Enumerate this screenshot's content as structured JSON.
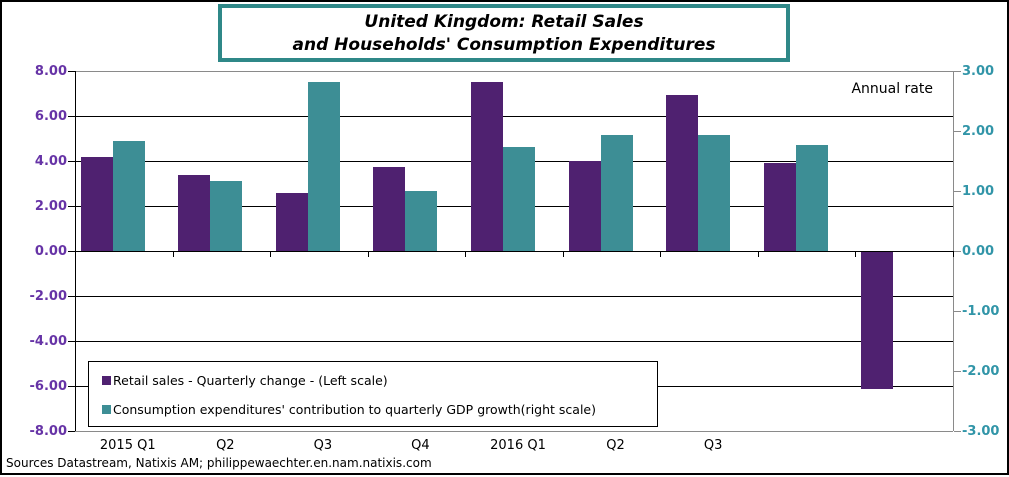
{
  "title": {
    "line1": "United Kingdom: Retail Sales",
    "line2": "and Households' Consumption Expenditures"
  },
  "annotation": "Annual rate",
  "source": "Sources Datastream, Natixis AM; philippewaechter.en.nam.natixis.com",
  "legend": {
    "items": [
      {
        "label": "Retail sales - Quarterly change - (Left scale)",
        "color": "#4F2170"
      },
      {
        "label": "Consumption expenditures' contribution to quarterly GDP growth(right scale)",
        "color": "#3D8E95"
      }
    ]
  },
  "colors": {
    "retail_bar": "#4F2170",
    "consumption_bar": "#3D8E95",
    "left_axis_text": "#6633A6",
    "right_axis_text": "#3195A8",
    "title_border": "#2F8888",
    "gridline": "#000000",
    "plot_frame": "#8a8a8a"
  },
  "chart_data": {
    "type": "bar",
    "title": "United Kingdom: Retail Sales and Households' Consumption Expenditures",
    "annotation": "Annual rate",
    "grid": true,
    "legend_position": "inside-bottom-left",
    "categories": [
      "2015 Q1",
      "Q2",
      "Q3",
      "Q4",
      "2016 Q1",
      "Q2",
      "Q3",
      "",
      ""
    ],
    "series": [
      {
        "name": "Retail sales - Quarterly change - (Left scale)",
        "axis": "left",
        "color": "#4F2170",
        "values": [
          4.2,
          3.4,
          2.6,
          3.75,
          7.5,
          4.0,
          6.95,
          3.9,
          -6.1
        ]
      },
      {
        "name": "Consumption expenditures' contribution to quarterly GDP growth(right scale)",
        "axis": "right",
        "color": "#3D8E95",
        "values": [
          1.84,
          1.17,
          2.82,
          1.0,
          1.73,
          1.94,
          1.94,
          1.77,
          null
        ]
      }
    ],
    "left_axis": {
      "min": -8,
      "max": 8,
      "step": 2,
      "tick_labels": [
        "8.00",
        "6.00",
        "4.00",
        "2.00",
        "0.00",
        "-2.00",
        "-4.00",
        "-6.00",
        "-8.00"
      ]
    },
    "right_axis": {
      "min": -3,
      "max": 3,
      "step": 1,
      "tick_labels": [
        "3.00",
        "2.00",
        "1.00",
        "0.00",
        "-1.00",
        "-2.00",
        "-3.00"
      ]
    }
  }
}
